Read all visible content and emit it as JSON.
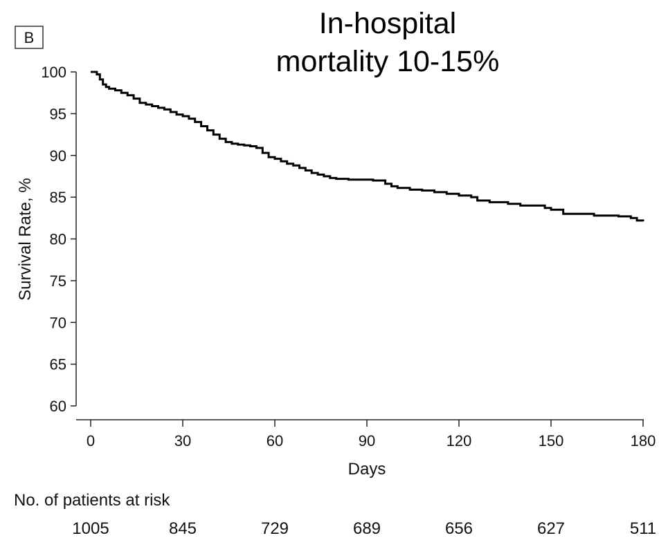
{
  "panel_label": "B",
  "title_lines": [
    "In-hospital",
    "mortality 10-15%"
  ],
  "risk_table": {
    "heading": "No. of patients at risk",
    "values": [
      "1005",
      "845",
      "729",
      "689",
      "656",
      "627",
      "511"
    ]
  },
  "chart_data": {
    "type": "line",
    "title": "In-hospital mortality 10-15%",
    "xlabel": "Days",
    "ylabel": "Survival Rate, %",
    "xlim": [
      0,
      180
    ],
    "ylim": [
      60,
      100
    ],
    "x_ticks": [
      0,
      30,
      60,
      90,
      120,
      150,
      180
    ],
    "y_ticks": [
      60,
      65,
      70,
      75,
      80,
      85,
      90,
      95,
      100
    ],
    "grid": false,
    "line_color": "#000000",
    "series": [
      {
        "step": true,
        "x": [
          0,
          2,
          3,
          4,
          5,
          6,
          8,
          10,
          12,
          14,
          16,
          18,
          20,
          22,
          24,
          26,
          28,
          30,
          32,
          34,
          36,
          38,
          40,
          42,
          44,
          46,
          48,
          50,
          52,
          54,
          56,
          58,
          60,
          62,
          64,
          66,
          68,
          70,
          72,
          74,
          76,
          78,
          80,
          84,
          88,
          92,
          96,
          98,
          100,
          104,
          108,
          112,
          116,
          120,
          124,
          126,
          130,
          136,
          140,
          144,
          148,
          150,
          154,
          160,
          164,
          168,
          172,
          176,
          178,
          180
        ],
        "y": [
          100,
          99.7,
          99.1,
          98.5,
          98.2,
          98.0,
          97.8,
          97.5,
          97.2,
          96.8,
          96.3,
          96.1,
          95.9,
          95.7,
          95.5,
          95.2,
          94.9,
          94.7,
          94.4,
          94.0,
          93.5,
          93.0,
          92.5,
          92.0,
          91.6,
          91.4,
          91.3,
          91.2,
          91.1,
          90.9,
          90.3,
          89.8,
          89.6,
          89.3,
          89.0,
          88.8,
          88.5,
          88.2,
          87.9,
          87.7,
          87.5,
          87.3,
          87.2,
          87.1,
          87.1,
          87.0,
          86.6,
          86.3,
          86.1,
          85.9,
          85.8,
          85.6,
          85.4,
          85.2,
          85.0,
          84.6,
          84.4,
          84.2,
          84.0,
          84.0,
          83.7,
          83.5,
          83.0,
          83.0,
          82.8,
          82.8,
          82.7,
          82.5,
          82.2,
          82.1
        ]
      }
    ]
  }
}
